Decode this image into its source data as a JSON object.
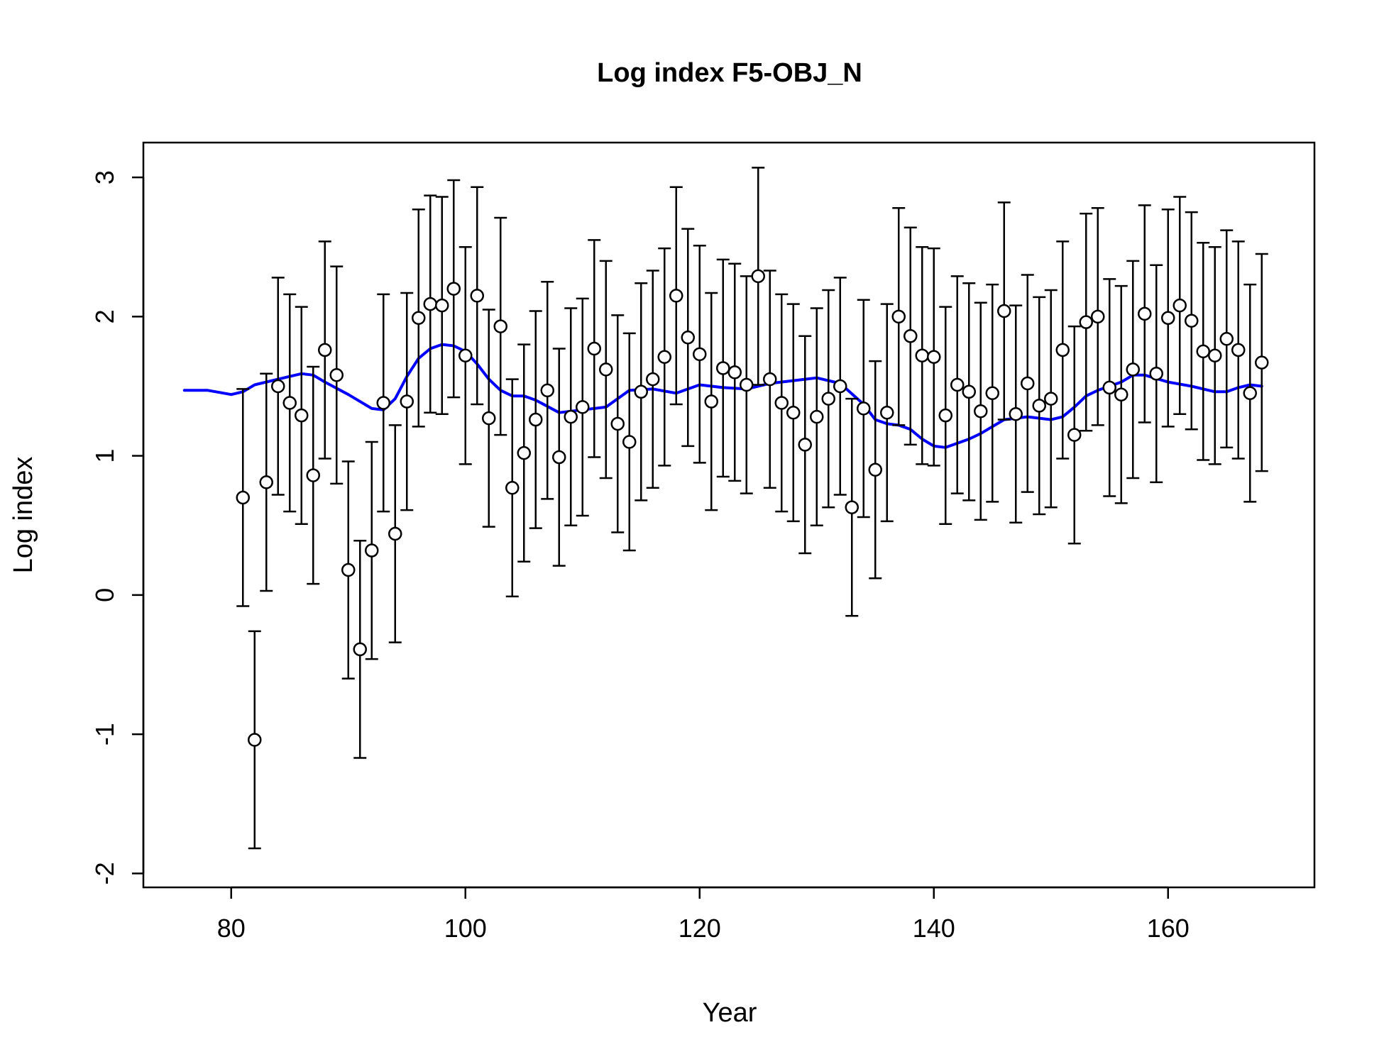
{
  "chart_data": {
    "type": "scatter",
    "title": "Log index F5-OBJ_N",
    "xlabel": "Year",
    "ylabel": "Log index",
    "xlim": [
      72.5,
      172.5
    ],
    "ylim": [
      -2.1,
      3.25
    ],
    "x_ticks": [
      80,
      100,
      120,
      140,
      160
    ],
    "y_ticks": [
      -2,
      -1,
      0,
      1,
      2,
      3
    ],
    "x_tick_labels": [
      "80",
      "100",
      "120",
      "140",
      "160"
    ],
    "y_tick_labels": [
      "-2",
      "-1",
      "0",
      "1",
      "2",
      "3"
    ],
    "grid": false,
    "legend": "none",
    "colors": {
      "points": "#000000",
      "error_bars": "#000000",
      "fit_line": "#0000ff"
    },
    "series": [
      {
        "kind": "points_with_error_bars",
        "x": [
          81,
          82,
          83,
          84,
          85,
          86,
          87,
          88,
          89,
          90,
          91,
          92,
          93,
          94,
          95,
          96,
          97,
          98,
          99,
          100,
          101,
          102,
          103,
          104,
          105,
          106,
          107,
          108,
          109,
          110,
          111,
          112,
          113,
          114,
          115,
          116,
          117,
          118,
          119,
          120,
          121,
          122,
          123,
          124,
          125,
          126,
          127,
          128,
          129,
          130,
          131,
          132,
          133,
          134,
          135,
          136,
          137,
          138,
          139,
          140,
          141,
          142,
          143,
          144,
          145,
          146,
          147,
          148,
          149,
          150,
          151,
          152,
          153,
          154,
          155,
          156,
          157,
          158,
          159,
          160,
          161,
          162,
          163,
          164,
          165,
          166,
          167,
          168
        ],
        "y": [
          0.7,
          -1.04,
          0.81,
          1.5,
          1.38,
          1.29,
          0.86,
          1.76,
          1.58,
          0.18,
          -0.39,
          0.32,
          1.38,
          0.44,
          1.39,
          1.99,
          2.09,
          2.08,
          2.2,
          1.72,
          2.15,
          1.27,
          1.93,
          0.77,
          1.02,
          1.26,
          1.47,
          0.99,
          1.28,
          1.35,
          1.77,
          1.62,
          1.23,
          1.1,
          1.46,
          1.55,
          1.71,
          2.15,
          1.85,
          1.73,
          1.39,
          1.63,
          1.6,
          1.51,
          2.29,
          1.55,
          1.38,
          1.31,
          1.08,
          1.28,
          1.41,
          1.5,
          0.63,
          1.34,
          0.9,
          1.31,
          2.0,
          1.86,
          1.72,
          1.71,
          1.29,
          1.51,
          1.46,
          1.32,
          1.45,
          2.04,
          1.3,
          1.52,
          1.36,
          1.41,
          1.76,
          1.15,
          1.96,
          2.0,
          1.49,
          1.44,
          1.62,
          2.02,
          1.59,
          1.99,
          2.08,
          1.97,
          1.75,
          1.72,
          1.84,
          1.76,
          1.45,
          1.67
        ],
        "lower": [
          -0.08,
          -1.82,
          0.03,
          0.72,
          0.6,
          0.51,
          0.08,
          0.98,
          0.8,
          -0.6,
          -1.17,
          -0.46,
          0.6,
          -0.34,
          0.61,
          1.21,
          1.31,
          1.3,
          1.42,
          0.94,
          1.37,
          0.49,
          1.15,
          -0.01,
          0.24,
          0.48,
          0.69,
          0.21,
          0.5,
          0.57,
          0.99,
          0.84,
          0.45,
          0.32,
          0.68,
          0.77,
          0.93,
          1.37,
          1.07,
          0.95,
          0.61,
          0.85,
          0.82,
          0.73,
          1.51,
          0.77,
          0.6,
          0.53,
          0.3,
          0.5,
          0.63,
          0.72,
          -0.15,
          0.56,
          0.12,
          0.53,
          1.22,
          1.08,
          0.94,
          0.93,
          0.51,
          0.73,
          0.68,
          0.54,
          0.67,
          1.26,
          0.52,
          0.74,
          0.58,
          0.63,
          0.98,
          0.37,
          1.18,
          1.22,
          0.71,
          0.66,
          0.84,
          1.24,
          0.81,
          1.21,
          1.3,
          1.19,
          0.97,
          0.94,
          1.06,
          0.98,
          0.67,
          0.89
        ],
        "upper": [
          1.48,
          -0.26,
          1.59,
          2.28,
          2.16,
          2.07,
          1.64,
          2.54,
          2.36,
          0.96,
          0.39,
          1.1,
          2.16,
          1.22,
          2.17,
          2.77,
          2.87,
          2.86,
          2.98,
          2.5,
          2.93,
          2.05,
          2.71,
          1.55,
          1.8,
          2.04,
          2.25,
          1.77,
          2.06,
          2.13,
          2.55,
          2.4,
          2.01,
          1.88,
          2.24,
          2.33,
          2.49,
          2.93,
          2.63,
          2.51,
          2.17,
          2.41,
          2.38,
          2.29,
          3.07,
          2.33,
          2.16,
          2.09,
          1.86,
          2.06,
          2.19,
          2.28,
          1.41,
          2.12,
          1.68,
          2.09,
          2.78,
          2.64,
          2.5,
          2.49,
          2.07,
          2.29,
          2.24,
          2.1,
          2.23,
          2.82,
          2.08,
          2.3,
          2.14,
          2.19,
          2.54,
          1.93,
          2.74,
          2.78,
          2.27,
          2.22,
          2.4,
          2.8,
          2.37,
          2.77,
          2.86,
          2.75,
          2.53,
          2.5,
          2.62,
          2.54,
          2.23,
          2.45
        ]
      },
      {
        "kind": "line",
        "x": [
          76,
          78,
          80,
          81,
          82,
          84,
          86,
          87,
          88,
          90,
          92,
          93,
          94,
          95,
          96,
          97,
          98,
          99,
          100,
          101,
          102,
          103,
          104,
          105,
          106,
          108,
          110,
          112,
          114,
          116,
          118,
          120,
          122,
          124,
          126,
          128,
          130,
          132,
          134,
          135,
          136,
          137,
          138,
          139,
          140,
          141,
          142,
          143,
          144,
          145,
          146,
          148,
          150,
          151,
          152,
          153,
          154,
          156,
          157,
          158,
          160,
          162,
          164,
          165,
          166,
          167,
          168
        ],
        "y": [
          1.47,
          1.47,
          1.44,
          1.46,
          1.51,
          1.55,
          1.59,
          1.58,
          1.53,
          1.44,
          1.34,
          1.33,
          1.41,
          1.57,
          1.7,
          1.77,
          1.8,
          1.79,
          1.75,
          1.66,
          1.55,
          1.47,
          1.43,
          1.43,
          1.4,
          1.31,
          1.33,
          1.35,
          1.47,
          1.48,
          1.45,
          1.51,
          1.49,
          1.48,
          1.52,
          1.54,
          1.56,
          1.52,
          1.37,
          1.26,
          1.23,
          1.22,
          1.19,
          1.12,
          1.07,
          1.06,
          1.09,
          1.12,
          1.16,
          1.21,
          1.26,
          1.28,
          1.26,
          1.28,
          1.35,
          1.43,
          1.47,
          1.53,
          1.58,
          1.58,
          1.53,
          1.5,
          1.46,
          1.46,
          1.49,
          1.51,
          1.5
        ]
      }
    ]
  }
}
